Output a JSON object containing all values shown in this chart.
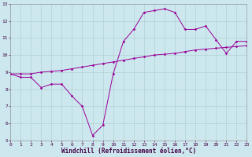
{
  "bg_color": "#cce8ee",
  "line_color": "#990099",
  "ylim": [
    5,
    13
  ],
  "xlim": [
    0,
    23
  ],
  "series1_x": [
    0,
    1,
    2,
    3,
    4,
    5,
    6,
    7,
    8,
    9,
    10,
    11,
    12,
    13,
    14,
    15,
    16,
    17,
    18,
    19,
    20,
    21,
    22,
    23
  ],
  "series1_y": [
    8.9,
    8.7,
    8.7,
    8.1,
    8.3,
    8.3,
    7.6,
    7.0,
    5.3,
    5.9,
    8.9,
    10.8,
    11.5,
    12.5,
    12.6,
    12.7,
    12.5,
    11.5,
    11.5,
    11.7,
    10.9,
    10.1,
    10.8,
    10.8
  ],
  "series2_x": [
    0,
    1,
    2,
    3,
    4,
    5,
    6,
    7,
    8,
    9,
    10,
    11,
    12,
    13,
    14,
    15,
    16,
    17,
    18,
    19,
    20,
    21,
    22,
    23
  ],
  "series2_y": [
    8.9,
    8.9,
    8.9,
    9.0,
    9.05,
    9.1,
    9.2,
    9.3,
    9.4,
    9.5,
    9.6,
    9.7,
    9.8,
    9.9,
    10.0,
    10.05,
    10.1,
    10.2,
    10.3,
    10.35,
    10.4,
    10.45,
    10.5,
    10.55
  ],
  "yticks": [
    5,
    6,
    7,
    8,
    9,
    10,
    11,
    12,
    13
  ],
  "xticks": [
    0,
    1,
    2,
    3,
    4,
    5,
    6,
    7,
    8,
    9,
    10,
    11,
    12,
    13,
    14,
    15,
    16,
    17,
    18,
    19,
    20,
    21,
    22,
    23
  ],
  "grid_color": "#aacccc",
  "xlabel": "Windchill (Refroidissement éolien,°C)",
  "tick_fontsize": 4.5,
  "xlabel_fontsize": 5.5
}
